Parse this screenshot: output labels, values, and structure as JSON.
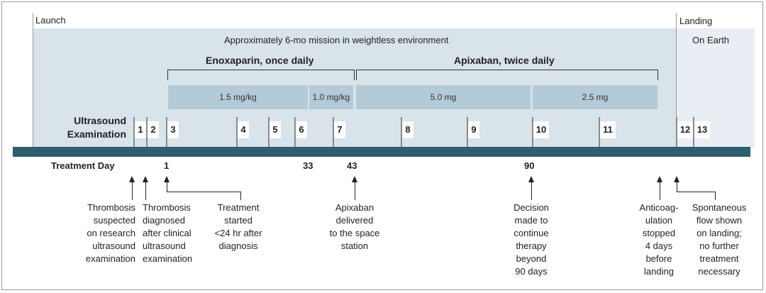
{
  "launch_label": "Launch",
  "landing_label": "Landing",
  "on_earth_label": "On Earth",
  "mission_label": "Approximately 6-mo mission in weightless environment",
  "enoxaparin_label": "Enoxaparin, once daily",
  "apixaban_label": "Apixaban, twice daily",
  "doses": [
    "1.5 mg/kg",
    "1.0 mg/kg",
    "5.0 mg",
    "2.5 mg"
  ],
  "ultrasound_label_1": "Ultrasound",
  "ultrasound_label_2": "Examination",
  "exams": [
    "1",
    "2",
    "3",
    "4",
    "5",
    "6",
    "7",
    "8",
    "9",
    "10",
    "11",
    "12",
    "13"
  ],
  "treatment_day_label": "Treatment Day",
  "days": [
    "1",
    "33",
    "43",
    "90"
  ],
  "notes": {
    "n1": [
      "Thrombosis",
      "suspected",
      "on research",
      "ultrasound",
      "examination"
    ],
    "n2": [
      "Thrombosis",
      "diagnosed",
      "after clinical",
      "ultrasound",
      "examination"
    ],
    "n3": [
      "Treatment",
      "started",
      "<24 hr after",
      "diagnosis"
    ],
    "n4": [
      "Apixaban",
      "delivered",
      "to the space",
      "station"
    ],
    "n5": [
      "Decision",
      "made to",
      "continue",
      "therapy",
      "beyond",
      "90 days"
    ],
    "n6": [
      "Anticoag-",
      "ulation",
      "stopped",
      "4 days",
      "before",
      "landing"
    ],
    "n7": [
      "Spontaneous",
      "flow shown",
      "on landing;",
      "no further",
      "treatment",
      "necessary"
    ]
  },
  "colors": {
    "band": "#d8e3ea",
    "dose": "#b4cad7",
    "axis": "#2f5d6e"
  }
}
